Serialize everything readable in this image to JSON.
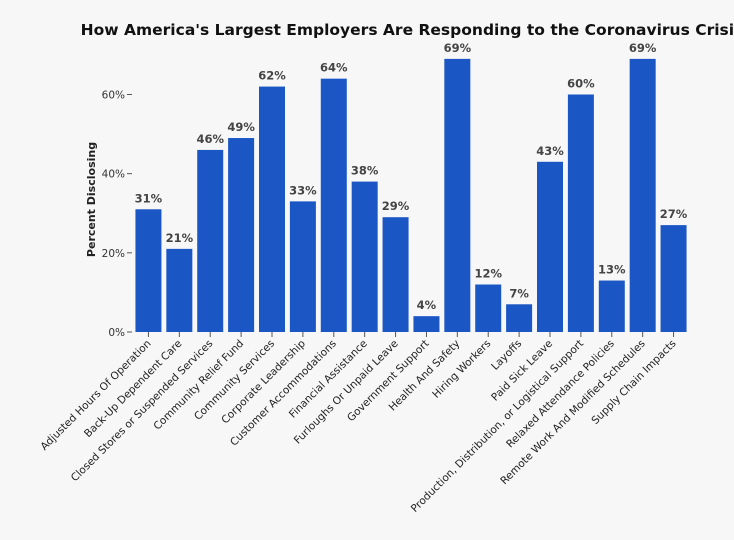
{
  "chart_data": {
    "type": "bar",
    "title": "How America's Largest Employers Are Responding to the Coronavirus Crisis",
    "xlabel": "",
    "ylabel": "Percent Disclosing",
    "ylim": [
      0,
      72
    ],
    "yticks": [
      0,
      20,
      40,
      60
    ],
    "ytick_labels": [
      "0%",
      "20%",
      "40%",
      "60%"
    ],
    "categories": [
      "Adjusted Hours Of Operation",
      "Back-Up Dependent Care",
      "Closed Stores or Suspended Services",
      "Community Relief Fund",
      "Community Services",
      "Corporate Leadership",
      "Customer Accommodations",
      "Financial Assistance",
      "Furloughs Or Unpaid Leave",
      "Government Support",
      "Health And Safety",
      "Hiring Workers",
      "Layoffs",
      "Paid Sick Leave",
      "Production, Distribution, or Logistical Support",
      "Relaxed Attendance Policies",
      "Remote Work And Modified Schedules",
      "Supply Chain Impacts"
    ],
    "values": [
      31,
      21,
      46,
      49,
      62,
      33,
      64,
      38,
      29,
      4,
      69,
      12,
      7,
      43,
      60,
      13,
      69,
      27
    ],
    "value_labels": [
      "31%",
      "21%",
      "46%",
      "49%",
      "62%",
      "33%",
      "64%",
      "38%",
      "29%",
      "4%",
      "69%",
      "12%",
      "7%",
      "43%",
      "60%",
      "13%",
      "69%",
      "27%"
    ],
    "bar_color": "#1a56c4",
    "grid": false,
    "legend": "none"
  }
}
